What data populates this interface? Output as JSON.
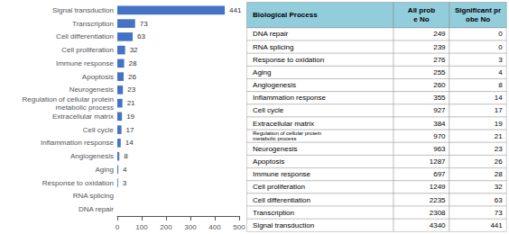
{
  "chart_data": [
    {
      "type": "bar",
      "orientation": "horizontal",
      "categories": [
        "Signal transduction",
        "Transcription",
        "Cell differentiation",
        "Cell proliferation",
        "Immune response",
        "Apoptosis",
        "Neurogenesis",
        "Regulation of cellular protein\nmetabolic process",
        "Extracellular matrix",
        "Cell cycle",
        "Inflammation response",
        "Angiogenesis",
        "Aging",
        "Response to oxidation",
        "RNA splicing",
        "DNA repair"
      ],
      "values": [
        441,
        73,
        63,
        32,
        28,
        26,
        23,
        21,
        19,
        17,
        14,
        8,
        4,
        3,
        0,
        0
      ],
      "value_labels": [
        "441",
        "73",
        "63",
        "32",
        "28",
        "26",
        "23",
        "21",
        "19",
        "17",
        "14",
        "8",
        "4",
        "3",
        null,
        null
      ],
      "data_labels": true,
      "color": "#4472c4",
      "xlim": [
        0,
        500
      ],
      "xticks": [
        0,
        100,
        200,
        300,
        400,
        500
      ],
      "grid": false
    },
    {
      "type": "table",
      "category_label": "Biological Process",
      "color": "#92cddc",
      "categories": [
        "DNA repair",
        "RNA splicing",
        "Response to oxidation",
        "Aging",
        "Angiogenesis",
        "Inflammation response",
        "Cell cycle",
        "Extracellular matrix",
        "Regulation of cellular protein\nmetabolic process",
        "Neurogenesis",
        "Apoptosis",
        "Immune response",
        "Cell proliferation",
        "Cell differentiation",
        "Transcription",
        "Signal transduction"
      ],
      "series": [
        {
          "name": "All prob\ne No",
          "values": [
            249,
            239,
            276,
            255,
            260,
            355,
            927,
            384,
            970,
            963,
            1287,
            697,
            1249,
            2235,
            2308,
            4340
          ]
        },
        {
          "name": "Significant pr\nobe No",
          "values": [
            0,
            0,
            3,
            4,
            8,
            14,
            17,
            19,
            21,
            23,
            26,
            28,
            32,
            63,
            73,
            441
          ]
        }
      ]
    }
  ]
}
